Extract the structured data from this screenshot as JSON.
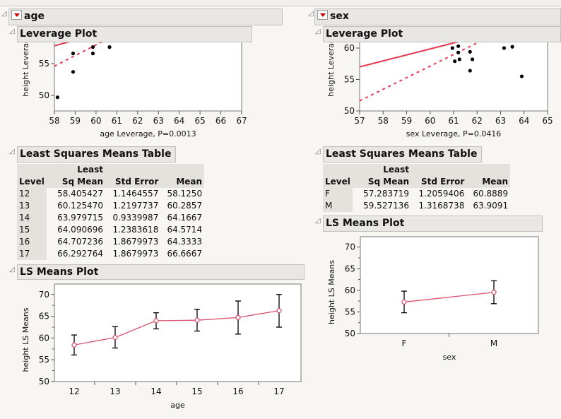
{
  "age_section": {
    "title": "age",
    "leverage_header": "Leverage Plot",
    "lsm_table_header": "Least Squares Means Table",
    "ls_plot_header": "LS Means Plot",
    "table": {
      "columns": [
        "Level",
        "Least Sq Mean",
        "Std Error",
        "Mean"
      ],
      "col_top": "Least",
      "col_sq": "Sq Mean",
      "rows": [
        [
          "12",
          "58.405427",
          "1.1464557",
          "58.1250"
        ],
        [
          "13",
          "60.125470",
          "1.2197737",
          "60.2857"
        ],
        [
          "14",
          "63.979715",
          "0.9339987",
          "64.1667"
        ],
        [
          "15",
          "64.090696",
          "1.2383618",
          "64.5714"
        ],
        [
          "16",
          "64.707236",
          "1.8679973",
          "64.3333"
        ],
        [
          "17",
          "66.292764",
          "1.8679973",
          "66.6667"
        ]
      ]
    }
  },
  "sex_section": {
    "title": "sex",
    "leverage_header": "Leverage Plot",
    "lsm_table_header": "Least Squares Means Table",
    "ls_plot_header": "LS Means Plot",
    "table": {
      "columns": [
        "Level",
        "Least Sq Mean",
        "Std Error",
        "Mean"
      ],
      "col_top": "Least",
      "col_sq": "Sq Mean",
      "rows": [
        [
          "F",
          "57.283719",
          "1.2059406",
          "60.8889"
        ],
        [
          "M",
          "59.527136",
          "1.3168738",
          "63.9091"
        ]
      ]
    }
  },
  "colors": {
    "fit_line": "#e8384f",
    "ls_line": "#d9506a",
    "points": "#000000"
  },
  "chart_data": [
    {
      "id": "age_leverage",
      "type": "scatter",
      "xlabel": "age Leverage, P=0.0013",
      "ylabel": "height Leverage",
      "xlim": [
        58,
        67
      ],
      "xticks": [
        58,
        59,
        60,
        61,
        62,
        63,
        64,
        65,
        66,
        67
      ],
      "yticks": [
        50,
        55
      ],
      "points": [
        [
          58.15,
          49.7
        ],
        [
          58.9,
          53.7
        ],
        [
          58.9,
          56.6
        ],
        [
          59.85,
          56.6
        ],
        [
          59.85,
          57.6
        ],
        [
          60.65,
          57.6
        ]
      ],
      "fit_line": [
        [
          58,
          57.8
        ],
        [
          58.9,
          58.6
        ]
      ],
      "confidence_curve": [
        [
          58,
          54.6
        ],
        [
          60.4,
          58.6
        ]
      ]
    },
    {
      "id": "sex_leverage",
      "type": "scatter",
      "xlabel": "sex Leverage, P=0.0416",
      "ylabel": "height Leverage",
      "xlim": [
        57,
        65
      ],
      "xticks": [
        57,
        58,
        59,
        60,
        61,
        62,
        63,
        64,
        65
      ],
      "yticks": [
        50,
        55,
        60
      ],
      "points": [
        [
          60.95,
          60.0
        ],
        [
          61.05,
          57.9
        ],
        [
          61.2,
          60.3
        ],
        [
          61.2,
          59.3
        ],
        [
          61.25,
          58.2
        ],
        [
          61.7,
          59.4
        ],
        [
          61.7,
          56.4
        ],
        [
          61.8,
          58.2
        ],
        [
          63.15,
          60.0
        ],
        [
          63.5,
          60.2
        ],
        [
          63.9,
          55.5
        ]
      ],
      "fit_line": [
        [
          57,
          57.0
        ],
        [
          61.2,
          61.0
        ]
      ],
      "confidence_curve": [
        [
          57,
          51.6
        ],
        [
          62.1,
          61.0
        ]
      ]
    },
    {
      "id": "age_ls_means",
      "type": "line",
      "xlabel": "age",
      "ylabel": "height LS Means",
      "categories": [
        "12",
        "13",
        "14",
        "15",
        "16",
        "17"
      ],
      "values": [
        58.405427,
        60.12547,
        63.979715,
        64.090696,
        64.707236,
        66.292764
      ],
      "error_low": [
        56.1,
        57.7,
        62.1,
        61.6,
        60.9,
        62.5
      ],
      "error_high": [
        60.7,
        62.6,
        65.8,
        66.6,
        68.5,
        70.0
      ],
      "ylim": [
        50,
        72.4
      ],
      "yticks": [
        50,
        55,
        60,
        65,
        70
      ]
    },
    {
      "id": "sex_ls_means",
      "type": "line",
      "xlabel": "sex",
      "ylabel": "height LS Means",
      "categories": [
        "F",
        "M"
      ],
      "values": [
        57.283719,
        59.527136
      ],
      "error_low": [
        54.8,
        56.9
      ],
      "error_high": [
        59.8,
        62.2
      ],
      "ylim": [
        50,
        72.4
      ],
      "yticks": [
        50,
        55,
        60,
        65,
        70
      ]
    }
  ]
}
